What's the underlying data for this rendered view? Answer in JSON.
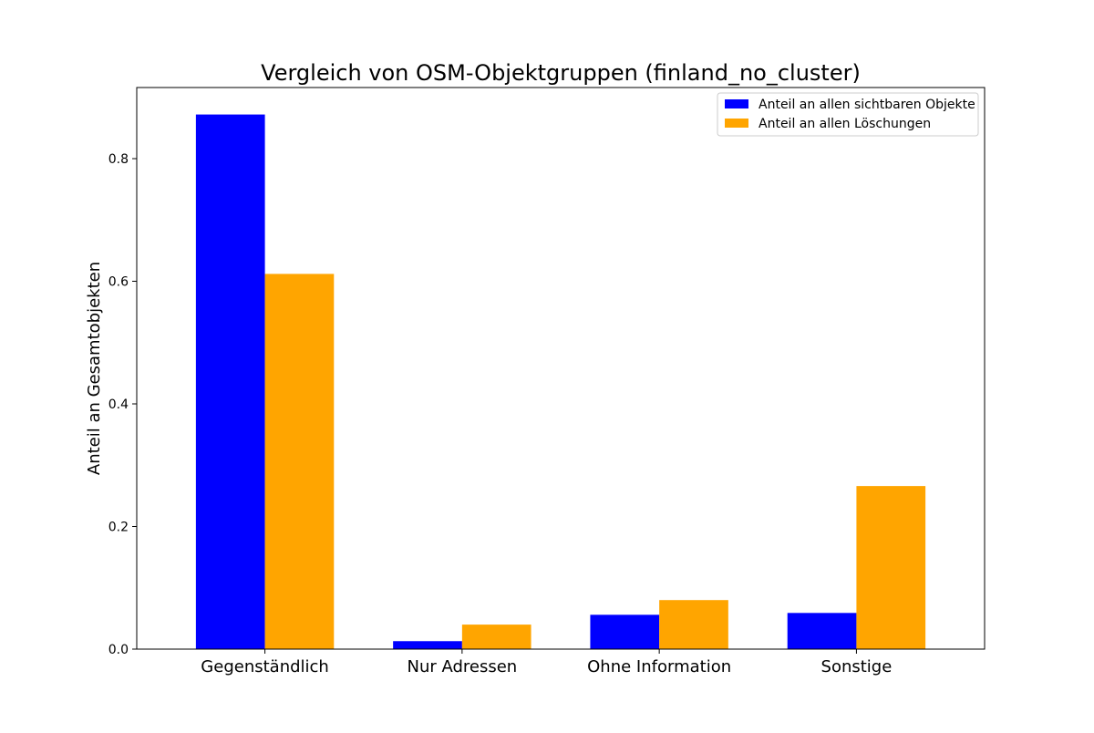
{
  "chart_data": {
    "type": "bar",
    "title": "Vergleich von OSM-Objektgruppen (finland_no_cluster)",
    "xlabel": "",
    "ylabel": "Anteil an Gesamtobjekten",
    "categories": [
      "Gegenständlich",
      "Nur Adressen",
      "Ohne Information",
      "Sonstige"
    ],
    "series": [
      {
        "name": "Anteil an allen sichtbaren Objekte",
        "color": "#0000ff",
        "values": [
          0.872,
          0.013,
          0.056,
          0.059
        ]
      },
      {
        "name": "Anteil an allen Löschungen",
        "color": "#ffa500",
        "values": [
          0.612,
          0.04,
          0.08,
          0.266
        ]
      }
    ],
    "ylim": [
      0,
      0.916
    ],
    "yticks": [
      0.0,
      0.2,
      0.4,
      0.6,
      0.8
    ],
    "ytick_labels": [
      "0.0",
      "0.2",
      "0.4",
      "0.6",
      "0.8"
    ],
    "grid": false,
    "legend_position": "top-right"
  }
}
